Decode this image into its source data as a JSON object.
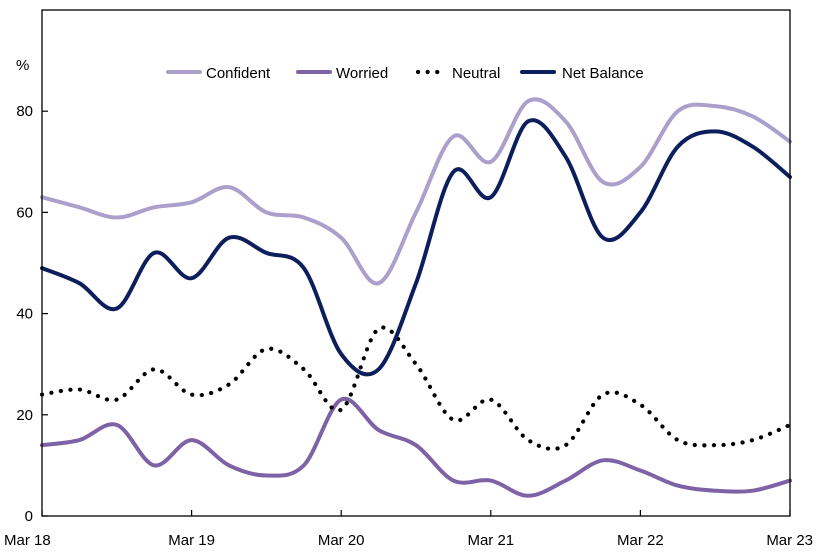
{
  "chart_data": {
    "type": "line",
    "ylabel": "%",
    "ylim": [
      0,
      100
    ],
    "yticks": [
      0,
      20,
      40,
      60,
      80
    ],
    "xlim": [
      0,
      60
    ],
    "xticks": [
      {
        "x": 0,
        "label": "Mar 18"
      },
      {
        "x": 12,
        "label": "Mar 19"
      },
      {
        "x": 24,
        "label": "Mar 20"
      },
      {
        "x": 36,
        "label": "Mar 21"
      },
      {
        "x": 48,
        "label": "Mar 22"
      },
      {
        "x": 60,
        "label": "Mar 23"
      }
    ],
    "legend_position": "top",
    "series": [
      {
        "name": "Confident",
        "color": "#ab9fcb",
        "style": "solid",
        "x": [
          0,
          3,
          6,
          9,
          12,
          15,
          18,
          21,
          24,
          27,
          30,
          33,
          36,
          39,
          42,
          45,
          48,
          51,
          54,
          57,
          60
        ],
        "values": [
          63,
          61,
          59,
          61,
          62,
          65,
          60,
          59,
          55,
          46,
          60,
          75,
          70,
          82,
          78,
          66,
          69,
          80,
          81,
          79,
          74
        ]
      },
      {
        "name": "Worried",
        "color": "#7d62a6",
        "style": "solid",
        "x": [
          0,
          3,
          6,
          9,
          12,
          15,
          18,
          21,
          24,
          27,
          30,
          33,
          36,
          39,
          42,
          45,
          48,
          51,
          54,
          57,
          60
        ],
        "values": [
          14,
          15,
          18,
          10,
          15,
          10,
          8,
          10,
          23,
          17,
          14,
          7,
          7,
          4,
          7,
          11,
          9,
          6,
          5,
          5,
          7
        ]
      },
      {
        "name": "Neutral",
        "color": "#000000",
        "style": "dotted",
        "x": [
          0,
          3,
          6,
          9,
          12,
          15,
          18,
          21,
          24,
          27,
          30,
          33,
          36,
          39,
          42,
          45,
          48,
          51,
          54,
          57,
          60
        ],
        "values": [
          24,
          25,
          23,
          29,
          24,
          26,
          33,
          29,
          21,
          37,
          30,
          19,
          23,
          15,
          14,
          24,
          22,
          15,
          14,
          15,
          18
        ]
      },
      {
        "name": "Net Balance",
        "color": "#0c1f5c",
        "style": "solid",
        "x": [
          0,
          3,
          6,
          9,
          12,
          15,
          18,
          21,
          24,
          27,
          30,
          33,
          36,
          39,
          42,
          45,
          48,
          51,
          54,
          57,
          60
        ],
        "values": [
          49,
          46,
          41,
          52,
          47,
          55,
          52,
          49,
          32,
          29,
          46,
          68,
          63,
          78,
          71,
          55,
          60,
          73,
          76,
          73,
          67
        ]
      }
    ]
  }
}
